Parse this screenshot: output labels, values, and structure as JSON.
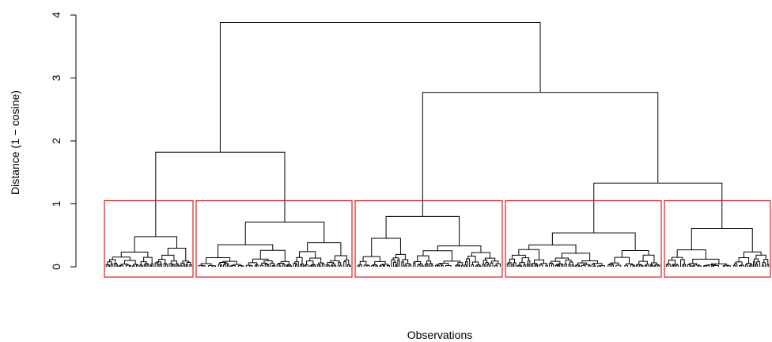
{
  "chart_data": {
    "type": "dendrogram",
    "title": "",
    "xlabel": "Observations",
    "ylabel": "Distance (1 − cosine)",
    "ylim": [
      0,
      4
    ],
    "yticks": [
      0,
      1,
      2,
      3,
      4
    ],
    "cut_height": 1.05,
    "clusters": [
      {
        "id": 1,
        "height": 0.48
      },
      {
        "id": 2,
        "height": 0.71
      },
      {
        "id": 3,
        "height": 0.8
      },
      {
        "id": 4,
        "height": 0.54
      },
      {
        "id": 5,
        "height": 0.61
      }
    ],
    "merges": [
      {
        "groups": [
          1,
          2
        ],
        "height": 1.82
      },
      {
        "groups": [
          4,
          5
        ],
        "height": 1.33
      },
      {
        "groups": [
          3,
          "4+5"
        ],
        "height": 2.77
      },
      {
        "groups": [
          "1+2",
          "3+4+5"
        ],
        "height": 3.88
      }
    ],
    "box_color": "#e41a1c",
    "line_color": "#000000"
  }
}
